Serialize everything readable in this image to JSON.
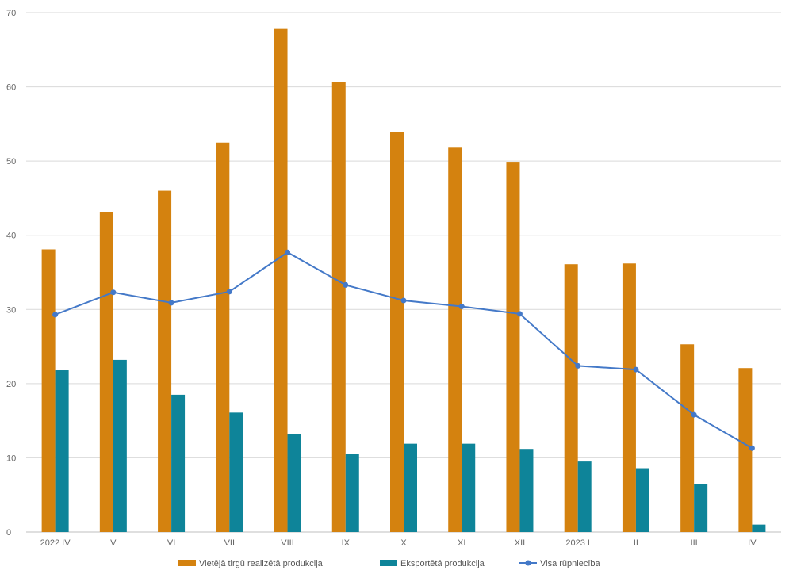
{
  "chart_data": {
    "type": "bar",
    "categories": [
      "2022 IV",
      "V",
      "VI",
      "VII",
      "VIII",
      "IX",
      "X",
      "XI",
      "XII",
      "2023 I",
      "II",
      "III",
      "IV"
    ],
    "series": [
      {
        "name": "Vietējā tirgū realizētā produkcija",
        "kind": "bar",
        "color": "#D4820F",
        "values": [
          38.1,
          43.1,
          46.0,
          52.5,
          67.9,
          60.7,
          53.9,
          51.8,
          49.9,
          36.1,
          36.2,
          25.3,
          22.1
        ]
      },
      {
        "name": "Eksportētā produkcija",
        "kind": "bar",
        "color": "#0E8499",
        "values": [
          21.8,
          23.2,
          18.5,
          16.1,
          13.2,
          10.5,
          11.9,
          11.9,
          11.2,
          9.5,
          8.6,
          6.5,
          1.0
        ]
      },
      {
        "name": "Visa rūpniecība",
        "kind": "line",
        "color": "#4479C8",
        "values": [
          29.3,
          32.3,
          30.9,
          32.4,
          37.7,
          33.3,
          31.2,
          30.4,
          29.4,
          22.4,
          21.9,
          15.8,
          11.3
        ]
      }
    ],
    "title": "",
    "xlabel": "",
    "ylabel": "",
    "ylim": [
      0,
      70
    ],
    "yticks": [
      0,
      10,
      20,
      30,
      40,
      50,
      60,
      70
    ],
    "grid": true,
    "legend_position": "bottom-center"
  }
}
